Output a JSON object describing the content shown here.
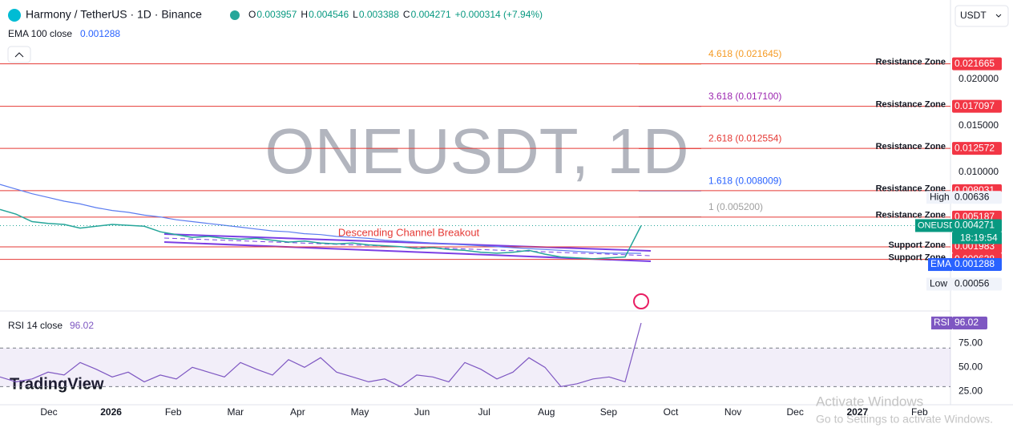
{
  "header": {
    "symbol": "Harmony / TetherUS · 1D · Binance",
    "ohlc": [
      {
        "key": "O",
        "value": "0.003957"
      },
      {
        "key": "H",
        "value": "0.004546"
      },
      {
        "key": "L",
        "value": "0.003388"
      },
      {
        "key": "C",
        "value": "0.004271"
      }
    ],
    "change": "+0.000314 (+7.94%)"
  },
  "indicator": {
    "label": "EMA 100 close",
    "value": "0.001288"
  },
  "currency": "USDT",
  "watermark": "ONEUSDT, 1D",
  "annotation": "Descending Channel Breakout",
  "price_axis": {
    "ylim": [
      -0.004655,
      0.028534
    ],
    "ticks": [
      {
        "value": 0.02,
        "label": "0.020000"
      },
      {
        "value": 0.015,
        "label": "0.015000"
      },
      {
        "value": 0.01,
        "label": "0.010000"
      }
    ]
  },
  "zones": [
    {
      "label": "Resistance Zone",
      "value": 0.021665
    },
    {
      "label": "Resistance Zone",
      "value": 0.017097
    },
    {
      "label": "Resistance Zone",
      "value": 0.012572
    },
    {
      "label": "Resistance Zone",
      "value": 0.008031
    },
    {
      "label": "Resistance Zone",
      "value": 0.005187
    },
    {
      "label": "Support Zone",
      "value": 0.001983
    },
    {
      "label": "Support Zone",
      "value": 0.000638
    }
  ],
  "fib": [
    {
      "label": "4.618 (0.021645)",
      "value": 0.021645,
      "color": "#f59b24"
    },
    {
      "label": "3.618 (0.017100)",
      "value": 0.0171,
      "color": "#9c27b0"
    },
    {
      "label": "2.618 (0.012554)",
      "value": 0.012554,
      "color": "#e53935"
    },
    {
      "label": "1.618 (0.008009)",
      "value": 0.008009,
      "color": "#2962ff"
    },
    {
      "label": "1 (0.005200)",
      "value": 0.0052,
      "color": "#9e9e9e"
    }
  ],
  "last": {
    "name": "ONEUSDT",
    "value": 0.004271,
    "countdown": "18:19:54"
  },
  "ema_tag": {
    "name": "EMA",
    "value": 0.001288
  },
  "high": {
    "name": "High",
    "value": 0.00636
  },
  "low": {
    "name": "Low",
    "value": 0.00056
  },
  "price": {
    "color": "#26a69a",
    "values": [
      0.006,
      0.0055,
      0.0047,
      0.0045,
      0.0044,
      0.004,
      0.0042,
      0.0044,
      0.0043,
      0.0042,
      0.0036,
      0.0033,
      0.003,
      0.0031,
      0.0029,
      0.0028,
      0.0029,
      0.0027,
      0.0025,
      0.0026,
      0.0024,
      0.0023,
      0.0024,
      0.0022,
      0.0021,
      0.002,
      0.0018,
      0.0019,
      0.0017,
      0.0016,
      0.0014,
      0.0013,
      0.0014,
      0.0016,
      0.0012,
      0.0009,
      0.0008,
      0.0007,
      0.0008,
      0.0009,
      0.004271
    ]
  },
  "ema": {
    "color": "#5b7cf0",
    "values": [
      0.0087,
      0.0082,
      0.0077,
      0.0073,
      0.0069,
      0.0066,
      0.0062,
      0.0059,
      0.0057,
      0.0054,
      0.0052,
      0.0049,
      0.0047,
      0.0045,
      0.0043,
      0.0041,
      0.0039,
      0.0037,
      0.0036,
      0.0034,
      0.0033,
      0.0031,
      0.003,
      0.0029,
      0.0027,
      0.0026,
      0.0025,
      0.0024,
      0.0023,
      0.0022,
      0.0021,
      0.002,
      0.0019,
      0.0018,
      0.0017,
      0.0016,
      0.0015,
      0.0014,
      0.0013,
      0.0013,
      0.001288
    ]
  },
  "rsi": {
    "label": "RSI 14 close",
    "tag": "RSI",
    "value": 96.02,
    "color": "#7e57c2",
    "ylim": [
      19.5,
      98.5
    ],
    "band": [
      30,
      70
    ],
    "ticks": [
      {
        "value": 75,
        "label": "75.00"
      },
      {
        "value": 50,
        "label": "50.00"
      },
      {
        "value": 25,
        "label": "25.00"
      }
    ],
    "values": [
      40,
      35,
      38,
      45,
      42,
      55,
      48,
      40,
      45,
      35,
      42,
      38,
      50,
      45,
      40,
      55,
      48,
      42,
      58,
      50,
      60,
      45,
      40,
      35,
      38,
      30,
      42,
      40,
      35,
      55,
      48,
      38,
      45,
      60,
      50,
      30,
      33,
      38,
      40,
      35,
      96.02
    ]
  },
  "time_labels": [
    "Dec",
    "2026",
    "Feb",
    "Mar",
    "Apr",
    "May",
    "Jun",
    "Jul",
    "Aug",
    "Sep",
    "Oct",
    "Nov",
    "Dec",
    "2027",
    "Feb"
  ],
  "logo": "TradingView",
  "os_notice": {
    "title": "Activate Windows",
    "text": "Go to Settings to activate Windows."
  }
}
